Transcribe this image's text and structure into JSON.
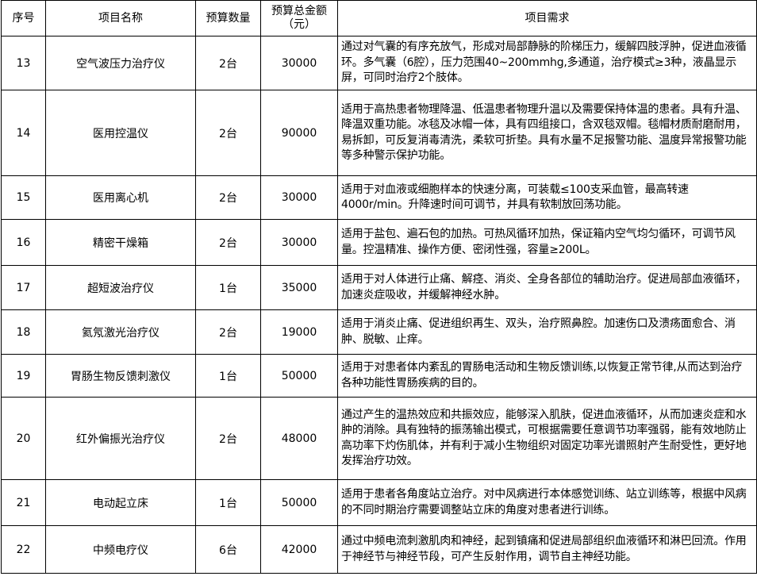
{
  "headers": {
    "no": "序号",
    "name": "项目名称",
    "qty": "预算数量",
    "amount": "预算总金额（元）",
    "req": "项目需求"
  },
  "rows": [
    {
      "no": "13",
      "name": "空气波压力治疗仪",
      "qty": "2台",
      "amount": "30000",
      "req": "通过对气囊的有序充放气，形成对局部静脉的阶梯压力，缓解四肢浮肿，促进血液循环。多气囊（6腔），压力范围40~200mmhg,多通道，治疗模式≥3种，液晶显示屏，可同时治疗2个肢体。"
    },
    {
      "no": "14",
      "name": "医用控温仪",
      "qty": "2台",
      "amount": "90000",
      "req": "适用于高热患者物理降温、低温患者物理升温以及需要保持体温的患者。具有升温、降温双重功能。冰毯及冰帽一体，具有四组接口，含双毯双帽。毯帽材质耐磨耐用，易拆卸，可反复消毒清洗，柔软可折垫。具有水量不足报警功能、温度异常报警功能等多种警示保护功能。"
    },
    {
      "no": "15",
      "name": "医用离心机",
      "qty": "2台",
      "amount": "30000",
      "req": "适用于对血液或细胞样本的快速分离，可装载≤100支采血管，最高转速4000r/min。升降速时间可调节，并具有软制放回荡功能。"
    },
    {
      "no": "16",
      "name": "精密干燥箱",
      "qty": "2台",
      "amount": "30000",
      "req": "适用于盐包、遍石包的加热。可热风循环加热，保证箱内空气均匀循环，可调节风量。控温精准、操作方便、密闭性强，容量≥200L。"
    },
    {
      "no": "17",
      "name": "超短波治疗仪",
      "qty": "1台",
      "amount": "35000",
      "req": "适用于对人体进行止痛、解痉、消炎、全身各部位的辅助治疗。促进局部血液循环，加速炎症吸收，并缓解神经水肿。"
    },
    {
      "no": "18",
      "name": "氦氖激光治疗仪",
      "qty": "2台",
      "amount": "19000",
      "req": "适用于消炎止痛、促进组织再生、双头，治疗照鼻腔。加速伤口及溃疡面愈合、消肿、脱敏、止痒。"
    },
    {
      "no": "19",
      "name": "胃肠生物反馈刺激仪",
      "qty": "1台",
      "amount": "50000",
      "req": "适用于对患者体内紊乱的胃肠电活动和生物反馈训练,以恢复正常节律,从而达到治疗各种功能性胃肠疾病的目的。"
    },
    {
      "no": "20",
      "name": "红外偏振光治疗仪",
      "qty": "2台",
      "amount": "48000",
      "req": "通过产生的温热效应和共振效应，能够深入肌肤，促进血液循环，从而加速炎症和水肿的消除。具有独特的振荡输出模式，可根据需要任意调节功率强弱，能有效地防止高功率下灼伤肌体，并有利于减小生物组织对固定功率光谱照射产生耐受性，更好地发挥治疗功效。"
    },
    {
      "no": "21",
      "name": "电动起立床",
      "qty": "1台",
      "amount": "50000",
      "req": "适用于患者各角度站立治疗。对中风病进行本体感觉训练、站立训练等，根据中风病的不同时期治疗需要调整站立床的角度对患者进行训练。"
    },
    {
      "no": "22",
      "name": "中频电疗仪",
      "qty": "6台",
      "amount": "42000",
      "req": "通过中频电流刺激肌肉和神经，起到镇痛和促进局部组织血液循环和淋巴回流。作用于神经节与神经节段，可产生反射作用，调节自主神经功能。"
    }
  ]
}
